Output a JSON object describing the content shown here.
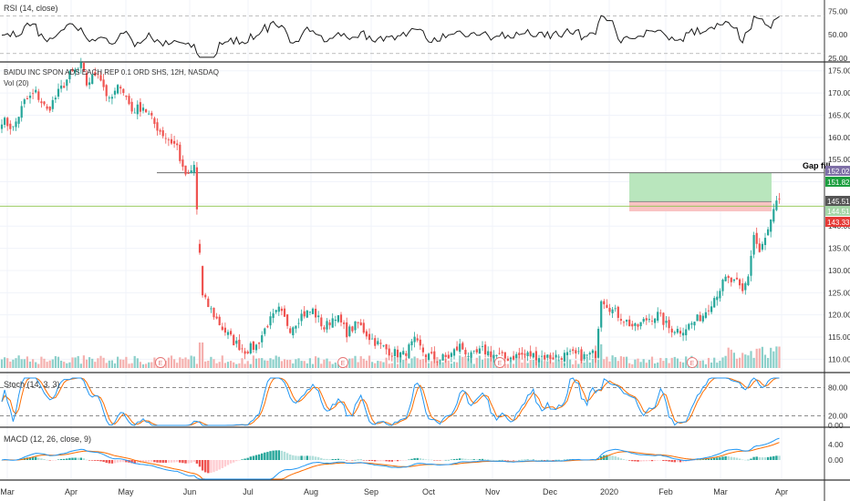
{
  "colors": {
    "up": "#26a69a",
    "down": "#ef5350",
    "vol_up": "#80cbc4",
    "vol_down": "#f4a7a5",
    "rsi": "#1a1a1a",
    "stoch_k": "#2196f3",
    "stoch_d": "#ff6d00",
    "macd": "#2196f3",
    "signal": "#ff6d00",
    "hist_up_strong": "#26a69a",
    "hist_up_weak": "#b2dfdb",
    "hist_down_strong": "#ef5350",
    "hist_down_weak": "#ffcdd2",
    "profit_zone": "#b9e6bd",
    "loss_zone": "#f9c3c3",
    "gap_line": "#555555",
    "ref_line": "#8bc34a",
    "badge_152": "#7e6fa6",
    "badge_151": "#1b9e3e",
    "badge_145": "#555555",
    "badge_144": "#a5d6a7",
    "badge_143": "#e53935",
    "earnings": "#e57373"
  },
  "labels": {
    "rsi_title": "RSI (14, close)",
    "symbol_title": "BAIDU INC SPON ADS EACH REP 0.1 ORD SHS, 12H, NASDAQ",
    "vol_title": "Vol (20)",
    "stoch_title": "Stoch (14, 3, 3)",
    "macd_title": "MACD (12, 26, close, 9)",
    "gap_fill": "Gap fill",
    "earnings_marker": "E"
  },
  "price_badges": [
    {
      "value": "152.02",
      "color_key": "badge_152"
    },
    {
      "value": "151.82",
      "color_key": "badge_151"
    },
    {
      "value": "145.51",
      "color_key": "badge_145"
    },
    {
      "value": "144.51",
      "color_key": "badge_144"
    },
    {
      "value": "143.33",
      "color_key": "badge_143"
    }
  ],
  "chart_data": {
    "type": "candlestick",
    "symbol": "BAIDU INC SPON ADS EACH REP 0.1 ORD SHS",
    "interval": "12H",
    "exchange": "NASDAQ",
    "x_months": [
      "Mar",
      "Apr",
      "May",
      "Jun",
      "Jul",
      "Aug",
      "Sep",
      "Oct",
      "Nov",
      "Dec",
      "2020",
      "Feb",
      "Mar",
      "Apr"
    ],
    "price_axis": {
      "ticks": [
        110,
        115,
        120,
        125,
        130,
        135,
        140,
        145,
        150,
        155,
        160,
        165,
        170,
        175
      ],
      "range": [
        107,
        177
      ]
    },
    "price_anchors": [
      [
        0,
        164
      ],
      [
        4,
        162
      ],
      [
        8,
        168
      ],
      [
        12,
        170
      ],
      [
        16,
        166
      ],
      [
        20,
        170
      ],
      [
        24,
        174
      ],
      [
        28,
        176
      ],
      [
        30,
        172
      ],
      [
        34,
        175
      ],
      [
        38,
        168
      ],
      [
        42,
        172
      ],
      [
        46,
        166
      ],
      [
        50,
        167
      ],
      [
        54,
        163
      ],
      [
        58,
        160
      ],
      [
        62,
        158
      ],
      [
        64,
        152.5
      ],
      [
        66,
        151
      ],
      [
        68,
        153.5
      ],
      [
        70,
        134
      ],
      [
        71,
        124
      ],
      [
        74,
        121
      ],
      [
        78,
        117
      ],
      [
        82,
        114
      ],
      [
        86,
        112
      ],
      [
        90,
        113
      ],
      [
        94,
        118
      ],
      [
        98,
        121
      ],
      [
        102,
        117
      ],
      [
        106,
        120
      ],
      [
        110,
        121
      ],
      [
        114,
        117
      ],
      [
        118,
        120
      ],
      [
        122,
        116
      ],
      [
        126,
        118
      ],
      [
        130,
        115
      ],
      [
        134,
        113
      ],
      [
        138,
        111.5
      ],
      [
        142,
        111
      ],
      [
        146,
        114
      ],
      [
        150,
        111
      ],
      [
        154,
        110
      ],
      [
        158,
        110.5
      ],
      [
        162,
        113
      ],
      [
        166,
        110.5
      ],
      [
        170,
        112
      ],
      [
        174,
        111
      ],
      [
        178,
        110.2
      ],
      [
        182,
        110.8
      ],
      [
        186,
        111
      ],
      [
        190,
        110.7
      ],
      [
        194,
        110.5
      ],
      [
        198,
        110.8
      ],
      [
        202,
        111
      ],
      [
        206,
        110.6
      ],
      [
        210,
        111.3
      ],
      [
        212,
        124
      ],
      [
        216,
        121
      ],
      [
        220,
        119
      ],
      [
        224,
        117
      ],
      [
        228,
        119
      ],
      [
        232,
        120
      ],
      [
        236,
        117
      ],
      [
        240,
        116.5
      ],
      [
        244,
        118
      ],
      [
        248,
        120
      ],
      [
        252,
        124
      ],
      [
        256,
        128
      ],
      [
        260,
        127
      ],
      [
        262,
        125
      ],
      [
        264,
        129
      ],
      [
        266,
        138
      ],
      [
        268,
        134
      ],
      [
        270,
        137
      ],
      [
        272,
        141
      ],
      [
        274,
        145
      ]
    ],
    "gap_fill_level": 152.02,
    "entry_level": 145.51,
    "reference_level": 144.51,
    "take_profit": 151.82,
    "stop_loss": 143.33,
    "rsi": {
      "ticks": [
        25,
        50,
        75
      ],
      "levels": [
        30,
        70
      ]
    },
    "stoch": {
      "ticks": [
        0,
        20,
        80
      ],
      "levels": [
        20,
        80
      ]
    },
    "macd": {
      "ticks": [
        0,
        4
      ]
    },
    "earnings_markers": [
      "May",
      "Aug",
      "Nov",
      "Feb"
    ]
  }
}
